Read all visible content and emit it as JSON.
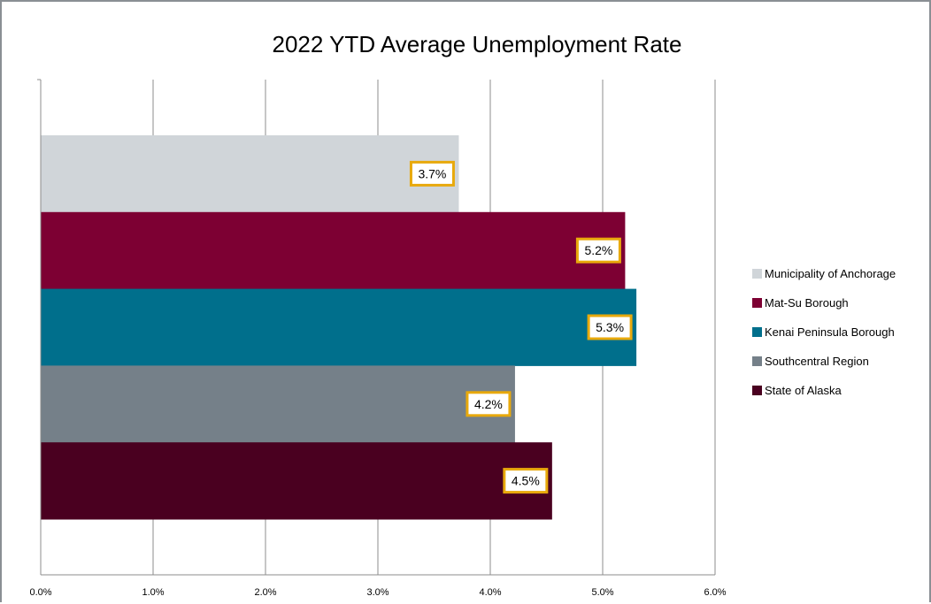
{
  "chart_data": {
    "type": "bar",
    "orientation": "horizontal",
    "title": "2022 YTD Average Unemployment Rate",
    "xlabel": "",
    "ylabel": "",
    "xlim": [
      0,
      6
    ],
    "x_ticks": [
      "0.0%",
      "1.0%",
      "2.0%",
      "3.0%",
      "4.0%",
      "5.0%",
      "6.0%"
    ],
    "grid": "vertical",
    "legend_position": "right",
    "series": [
      {
        "name": "Municipality of Anchorage",
        "value": 3.72,
        "label": "3.7%",
        "color": "#d0d5d9"
      },
      {
        "name": "Mat-Su Borough",
        "value": 5.2,
        "label": "5.2%",
        "color": "#7d0033"
      },
      {
        "name": "Kenai Peninsula Borough",
        "value": 5.3,
        "label": "5.3%",
        "color": "#006f8c"
      },
      {
        "name": "Southcentral Region",
        "value": 4.22,
        "label": "4.2%",
        "color": "#758089"
      },
      {
        "name": "State of Alaska",
        "value": 4.55,
        "label": "4.5%",
        "color": "#4a0020"
      }
    ],
    "data_label_border_color": "#e8a90c"
  }
}
